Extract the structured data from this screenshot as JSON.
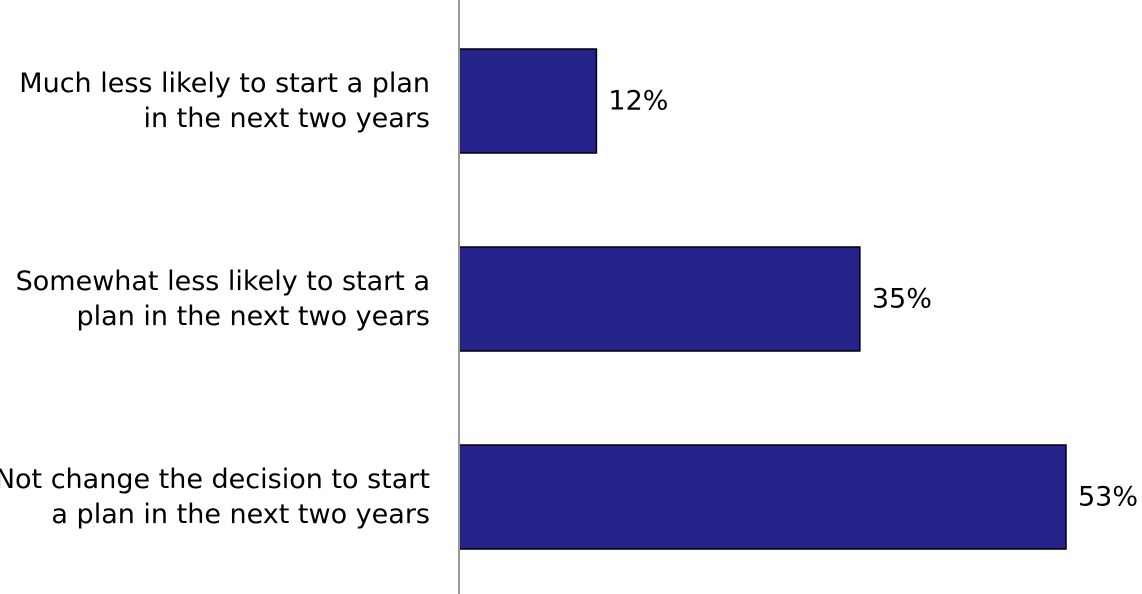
{
  "chart_data": {
    "type": "bar",
    "orientation": "horizontal",
    "categories": [
      "Much less likely to start a plan in the next two years",
      "Somewhat less likely to start a plan in the next two years",
      "Not change the decision to start a plan in the next two years"
    ],
    "values": [
      12,
      35,
      53
    ],
    "value_labels": [
      "12%",
      "35%",
      "53%"
    ],
    "xlim": [
      0,
      53
    ],
    "grid": false,
    "legend": "none",
    "colors": {
      "bar_fill": "#25238A",
      "bar_stroke": "#000000",
      "axis": "#999999"
    }
  }
}
